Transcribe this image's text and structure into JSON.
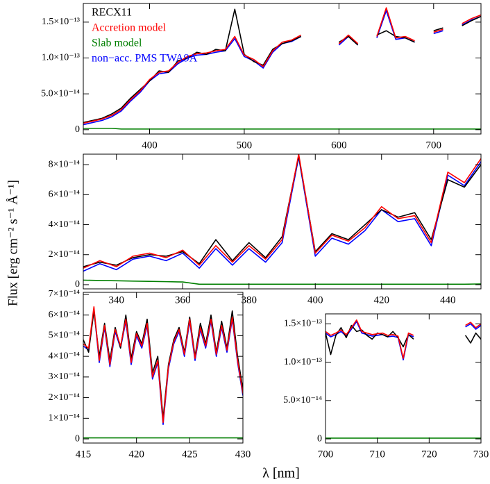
{
  "axis_labels": {
    "y": "Flux [erg cm⁻² s⁻¹ Å⁻¹]",
    "x": "λ [nm]"
  },
  "chart_data": [
    {
      "type": "line",
      "x": [
        330,
        340,
        350,
        360,
        370,
        380,
        390,
        400,
        410,
        420,
        430,
        440,
        450,
        460,
        470,
        480,
        490,
        500,
        510,
        520,
        530,
        540,
        550,
        560,
        570,
        580,
        590,
        600,
        610,
        620,
        630,
        640,
        650,
        660,
        670,
        680,
        690,
        700,
        710,
        720,
        730,
        740,
        750
      ],
      "series": [
        {
          "name": "RECX11",
          "color": "#000000",
          "values": [
            1e-14,
            1.3e-14,
            1.6e-14,
            2.2e-14,
            3e-14,
            4.4e-14,
            5.6e-14,
            6.8e-14,
            8.2e-14,
            8e-14,
            9.6e-14,
            1e-13,
            1.08e-13,
            1.05e-13,
            1.12e-13,
            1.1e-13,
            1.68e-13,
            1.05e-13,
            9.5e-14,
            9e-14,
            1.12e-13,
            1.2e-13,
            1.24e-13,
            1.3e-13,
            null,
            null,
            null,
            1.22e-13,
            1.3e-13,
            1.18e-13,
            null,
            1.32e-13,
            1.38e-13,
            1.3e-13,
            1.28e-13,
            1.22e-13,
            null,
            1.38e-13,
            1.42e-13,
            null,
            1.45e-13,
            1.52e-13,
            1.58e-13
          ]
        },
        {
          "name": "Accretion model",
          "color": "#ff0000",
          "values": [
            9e-15,
            1.2e-14,
            1.5e-14,
            2e-14,
            2.8e-14,
            4.2e-14,
            5.4e-14,
            7e-14,
            8e-14,
            8.2e-14,
            9.4e-14,
            1.02e-13,
            1.06e-13,
            1.07e-13,
            1.1e-13,
            1.12e-13,
            1.3e-13,
            1.04e-13,
            9.8e-14,
            8.8e-14,
            1.1e-13,
            1.22e-13,
            1.25e-13,
            1.32e-13,
            null,
            null,
            null,
            1.2e-13,
            1.32e-13,
            1.2e-13,
            null,
            1.3e-13,
            1.7e-13,
            1.28e-13,
            1.3e-13,
            1.24e-13,
            null,
            1.36e-13,
            1.4e-13,
            null,
            1.48e-13,
            1.55e-13,
            1.6e-13
          ]
        },
        {
          "name": "Slab model",
          "color": "#007f00",
          "values": [
            2e-15,
            2e-15,
            2e-15,
            2e-15,
            1e-15,
            1e-15,
            1e-15,
            1e-15,
            1e-15,
            1e-15,
            1e-15,
            1e-15,
            1e-15,
            1e-15,
            1e-15,
            1e-15,
            1e-15,
            1e-15,
            1e-15,
            1e-15,
            1e-15,
            1e-15,
            1e-15,
            1e-15,
            1e-15,
            1e-15,
            1e-15,
            1e-15,
            1e-15,
            1e-15,
            1e-15,
            1e-15,
            1e-15,
            1e-15,
            1e-15,
            1e-15,
            1e-15,
            1e-15,
            1e-15,
            1e-15,
            1e-15,
            1e-15,
            1e-15
          ]
        },
        {
          "name": "non−acc. PMS TWA9A",
          "color": "#0000ff",
          "values": [
            7e-15,
            1e-14,
            1.3e-14,
            1.8e-14,
            2.6e-14,
            4e-14,
            5.2e-14,
            6.8e-14,
            7.8e-14,
            8e-14,
            9.2e-14,
            1e-13,
            1.04e-13,
            1.05e-13,
            1.08e-13,
            1.1e-13,
            1.27e-13,
            1.02e-13,
            9.6e-14,
            8.6e-14,
            1.08e-13,
            1.2e-13,
            1.23e-13,
            1.3e-13,
            null,
            null,
            null,
            1.18e-13,
            1.3e-13,
            1.18e-13,
            null,
            1.28e-13,
            1.66e-13,
            1.26e-13,
            1.28e-13,
            1.22e-13,
            null,
            1.34e-13,
            1.38e-13,
            null,
            1.46e-13,
            1.53e-13,
            1.58e-13
          ]
        }
      ],
      "xlim": [
        330,
        750
      ],
      "xticks": [
        400,
        500,
        600,
        700
      ],
      "ylim": [
        -6e-15,
        1.76e-13
      ],
      "yticks": [
        0,
        {
          "value": 5e-14,
          "label": "5.0×10⁻¹⁴"
        },
        {
          "value": 1e-13,
          "label": "1.0×10⁻¹³"
        },
        {
          "value": 1.5e-13,
          "label": "1.5×10⁻¹³"
        }
      ],
      "legend": "upper left"
    },
    {
      "type": "line",
      "x": [
        330,
        335,
        340,
        345,
        350,
        355,
        360,
        365,
        370,
        375,
        380,
        385,
        390,
        395,
        400,
        405,
        410,
        415,
        420,
        425,
        430,
        435,
        440,
        445,
        450
      ],
      "series": [
        {
          "color": "#000000",
          "values": [
            1.2e-14,
            1.5e-14,
            1.3e-14,
            1.8e-14,
            2e-14,
            1.9e-14,
            2.2e-14,
            1.4e-14,
            3e-14,
            1.6e-14,
            2.8e-14,
            1.8e-14,
            3.2e-14,
            8.6e-14,
            2.2e-14,
            3.4e-14,
            3e-14,
            4e-14,
            5e-14,
            4.5e-14,
            4.8e-14,
            3e-14,
            7e-14,
            6.5e-14,
            8e-14
          ]
        },
        {
          "color": "#ff0000",
          "values": [
            1.1e-14,
            1.6e-14,
            1.2e-14,
            1.9e-14,
            2.1e-14,
            1.8e-14,
            2.3e-14,
            1.3e-14,
            2.6e-14,
            1.5e-14,
            2.6e-14,
            1.7e-14,
            3e-14,
            8.7e-14,
            2.1e-14,
            3.3e-14,
            2.9e-14,
            3.8e-14,
            5.2e-14,
            4.4e-14,
            4.6e-14,
            2.8e-14,
            7.5e-14,
            6.8e-14,
            8.4e-14
          ]
        },
        {
          "color": "#007f00",
          "values": [
            3e-15,
            2.8e-15,
            2.6e-15,
            2.4e-15,
            2.2e-15,
            2e-15,
            1.8e-15,
            3e-16,
            3e-16,
            3e-16,
            3e-16,
            3e-16,
            3e-16,
            3e-16,
            3e-16,
            3e-16,
            3e-16,
            3e-16,
            3e-16,
            3e-16,
            3e-16,
            3e-16,
            3e-16,
            3e-16,
            5e-16
          ]
        },
        {
          "color": "#0000ff",
          "values": [
            9e-15,
            1.4e-14,
            1e-14,
            1.7e-14,
            1.9e-14,
            1.6e-14,
            2.1e-14,
            1.1e-14,
            2.4e-14,
            1.3e-14,
            2.4e-14,
            1.5e-14,
            2.8e-14,
            8.5e-14,
            1.9e-14,
            3.1e-14,
            2.7e-14,
            3.6e-14,
            5e-14,
            4.2e-14,
            4.4e-14,
            2.6e-14,
            7.3e-14,
            6.6e-14,
            8.2e-14
          ]
        }
      ],
      "xlim": [
        330,
        450
      ],
      "xticks": [
        340,
        360,
        380,
        400,
        420,
        440
      ],
      "ylim": [
        -2.8e-15,
        8.7e-14
      ],
      "yticks": [
        0,
        {
          "value": 2e-14,
          "label": "2×10⁻¹⁴"
        },
        {
          "value": 4e-14,
          "label": "4×10⁻¹⁴"
        },
        {
          "value": 6e-14,
          "label": "6×10⁻¹⁴"
        },
        {
          "value": 8e-14,
          "label": "8×10⁻¹⁴"
        }
      ]
    },
    {
      "type": "line",
      "x": [
        415,
        415.5,
        416,
        416.5,
        417,
        417.5,
        418,
        418.5,
        419,
        419.5,
        420,
        420.5,
        421,
        421.5,
        422,
        422.5,
        423,
        423.5,
        424,
        424.5,
        425,
        425.5,
        426,
        426.5,
        427,
        427.5,
        428,
        428.5,
        429,
        429.5,
        430
      ],
      "series": [
        {
          "color": "#000000",
          "values": [
            4.8e-14,
            4.2e-14,
            6.2e-14,
            4e-14,
            5.6e-14,
            3.8e-14,
            5.4e-14,
            4.4e-14,
            6e-14,
            3.9e-14,
            5.2e-14,
            4.6e-14,
            5.8e-14,
            3.2e-14,
            4e-14,
            1e-14,
            3.6e-14,
            4.8e-14,
            5.4e-14,
            4.2e-14,
            5.9e-14,
            4e-14,
            5.6e-14,
            4.6e-14,
            6e-14,
            4.2e-14,
            5.7e-14,
            4.4e-14,
            6.2e-14,
            4e-14,
            2.4e-14
          ]
        },
        {
          "color": "#ff0000",
          "values": [
            4.6e-14,
            4.4e-14,
            6.4e-14,
            3.8e-14,
            5.5e-14,
            3.6e-14,
            5.3e-14,
            4.5e-14,
            5.8e-14,
            3.7e-14,
            5.1e-14,
            4.5e-14,
            5.6e-14,
            3e-14,
            3.8e-14,
            8e-15,
            3.5e-14,
            4.7e-14,
            5.3e-14,
            4.1e-14,
            5.8e-14,
            3.9e-14,
            5.4e-14,
            4.5e-14,
            5.8e-14,
            4.1e-14,
            5.5e-14,
            4.3e-14,
            5.9e-14,
            3.8e-14,
            2.2e-14
          ]
        },
        {
          "color": "#007f00",
          "values": [
            5e-16,
            5e-16,
            5e-16,
            5e-16,
            5e-16,
            5e-16,
            5e-16,
            5e-16,
            5e-16,
            5e-16,
            5e-16,
            5e-16,
            5e-16,
            5e-16,
            5e-16,
            5e-16,
            5e-16,
            5e-16,
            5e-16,
            5e-16,
            5e-16,
            5e-16,
            5e-16,
            5e-16,
            5e-16,
            5e-16,
            5e-16,
            5e-16,
            5e-16,
            5e-16,
            5e-16
          ]
        },
        {
          "color": "#0000ff",
          "values": [
            4.5e-14,
            4.3e-14,
            6.3e-14,
            3.7e-14,
            5.4e-14,
            3.5e-14,
            5.2e-14,
            4.4e-14,
            5.7e-14,
            3.6e-14,
            5e-14,
            4.4e-14,
            5.5e-14,
            2.9e-14,
            3.7e-14,
            7e-15,
            3.4e-14,
            4.6e-14,
            5.2e-14,
            4e-14,
            5.7e-14,
            3.8e-14,
            5.3e-14,
            4.4e-14,
            5.7e-14,
            4e-14,
            5.4e-14,
            4.2e-14,
            5.8e-14,
            3.7e-14,
            2.1e-14
          ]
        }
      ],
      "xlim": [
        415,
        430
      ],
      "xticks": [
        415,
        420,
        425,
        430
      ],
      "ylim": [
        -2e-15,
        7.1e-14
      ],
      "yticks": [
        0,
        {
          "value": 1e-14,
          "label": "1×10⁻¹⁴"
        },
        {
          "value": 2e-14,
          "label": "2×10⁻¹⁴"
        },
        {
          "value": 3e-14,
          "label": "3×10⁻¹⁴"
        },
        {
          "value": 4e-14,
          "label": "4×10⁻¹⁴"
        },
        {
          "value": 5e-14,
          "label": "5×10⁻¹⁴"
        },
        {
          "value": 6e-14,
          "label": "6×10⁻¹⁴"
        },
        {
          "value": 7e-14,
          "label": "7×10⁻¹⁴"
        }
      ]
    },
    {
      "type": "line",
      "x": [
        700,
        701,
        702,
        703,
        704,
        705,
        706,
        707,
        708,
        709,
        710,
        711,
        712,
        713,
        714,
        715,
        716,
        717,
        718,
        719,
        720,
        721,
        722,
        723,
        724,
        725,
        726,
        727,
        728,
        729,
        730
      ],
      "series": [
        {
          "color": "#000000",
          "values": [
            1.38e-13,
            1.1e-13,
            1.35e-13,
            1.45e-13,
            1.32e-13,
            1.48e-13,
            1.4e-13,
            1.42e-13,
            1.35e-13,
            1.3e-13,
            1.38e-13,
            1.36e-13,
            1.33e-13,
            1.4e-13,
            1.32e-13,
            1.2e-13,
            1.36e-13,
            1.3e-13,
            null,
            null,
            null,
            null,
            null,
            null,
            null,
            null,
            null,
            1.35e-13,
            1.25e-13,
            1.38e-13,
            1.3e-13
          ]
        },
        {
          "color": "#ff0000",
          "values": [
            1.4e-13,
            1.35e-13,
            1.38e-13,
            1.42e-13,
            1.36e-13,
            1.45e-13,
            1.55e-13,
            1.4e-13,
            1.38e-13,
            1.36e-13,
            1.37e-13,
            1.38e-13,
            1.35e-13,
            1.36e-13,
            1.34e-13,
            1.05e-13,
            1.38e-13,
            1.35e-13,
            null,
            null,
            null,
            null,
            null,
            null,
            null,
            null,
            null,
            1.48e-13,
            1.52e-13,
            1.45e-13,
            1.5e-13
          ]
        },
        {
          "color": "#007f00",
          "values": [
            1e-15,
            1e-15,
            1e-15,
            1e-15,
            1e-15,
            1e-15,
            1e-15,
            1e-15,
            1e-15,
            1e-15,
            1e-15,
            1e-15,
            1e-15,
            1e-15,
            1e-15,
            1e-15,
            1e-15,
            1e-15,
            1e-15,
            1e-15,
            1e-15,
            1e-15,
            1e-15,
            1e-15,
            1e-15,
            1e-15,
            1e-15,
            1e-15,
            1e-15,
            1e-15,
            1e-15
          ]
        },
        {
          "color": "#0000ff",
          "values": [
            1.38e-13,
            1.33e-13,
            1.36e-13,
            1.4e-13,
            1.34e-13,
            1.43e-13,
            1.53e-13,
            1.38e-13,
            1.36e-13,
            1.34e-13,
            1.35e-13,
            1.36e-13,
            1.33e-13,
            1.34e-13,
            1.32e-13,
            1.03e-13,
            1.36e-13,
            1.33e-13,
            null,
            null,
            null,
            null,
            null,
            null,
            null,
            null,
            null,
            1.46e-13,
            1.5e-13,
            1.43e-13,
            1.48e-13
          ]
        }
      ],
      "xlim": [
        700,
        730
      ],
      "xticks": [
        700,
        710,
        720,
        730
      ],
      "ylim": [
        -5.4e-15,
        1.63e-13
      ],
      "yticks": [
        0,
        {
          "value": 5e-14,
          "label": "5.0×10⁻¹⁴"
        },
        {
          "value": 1e-13,
          "label": "1.0×10⁻¹³"
        },
        {
          "value": 1.5e-13,
          "label": "1.5×10⁻¹³"
        }
      ]
    }
  ]
}
